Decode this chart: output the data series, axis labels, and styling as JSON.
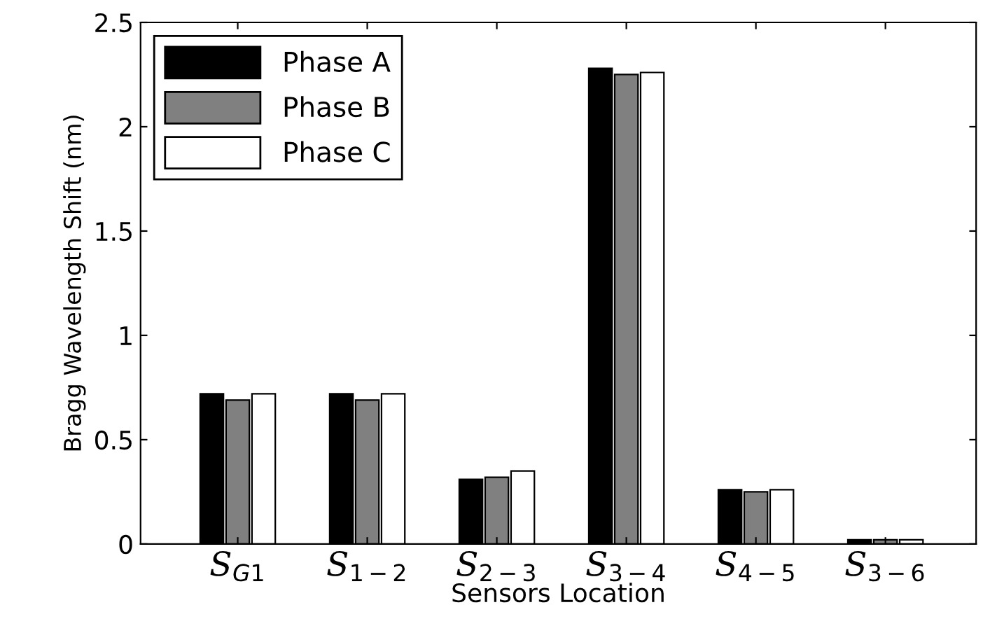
{
  "chart_data": {
    "type": "bar",
    "xlabel": "Sensors Location",
    "ylabel": "Bragg Wavelength Shift (nm)",
    "categories": [
      "S$_{G1}$",
      "S$_{1−2}$",
      "S$_{2−3}$",
      "S$_{3−4}$",
      "S$_{4−5}$",
      "S$_{3−6}$"
    ],
    "series": [
      {
        "name": "Phase A",
        "color": "#000000",
        "values": [
          0.72,
          0.72,
          0.31,
          2.28,
          0.26,
          0.02
        ]
      },
      {
        "name": "Phase B",
        "color": "#808080",
        "values": [
          0.69,
          0.69,
          0.32,
          2.25,
          0.25,
          0.02
        ]
      },
      {
        "name": "Phase C",
        "color": "#ffffff",
        "values": [
          0.72,
          0.72,
          0.35,
          2.26,
          0.26,
          0.02
        ]
      }
    ],
    "ylim": [
      0,
      2.5
    ],
    "yticks": [
      0,
      0.5,
      1,
      1.5,
      2,
      2.5
    ],
    "grid": false,
    "legend": "top left"
  }
}
